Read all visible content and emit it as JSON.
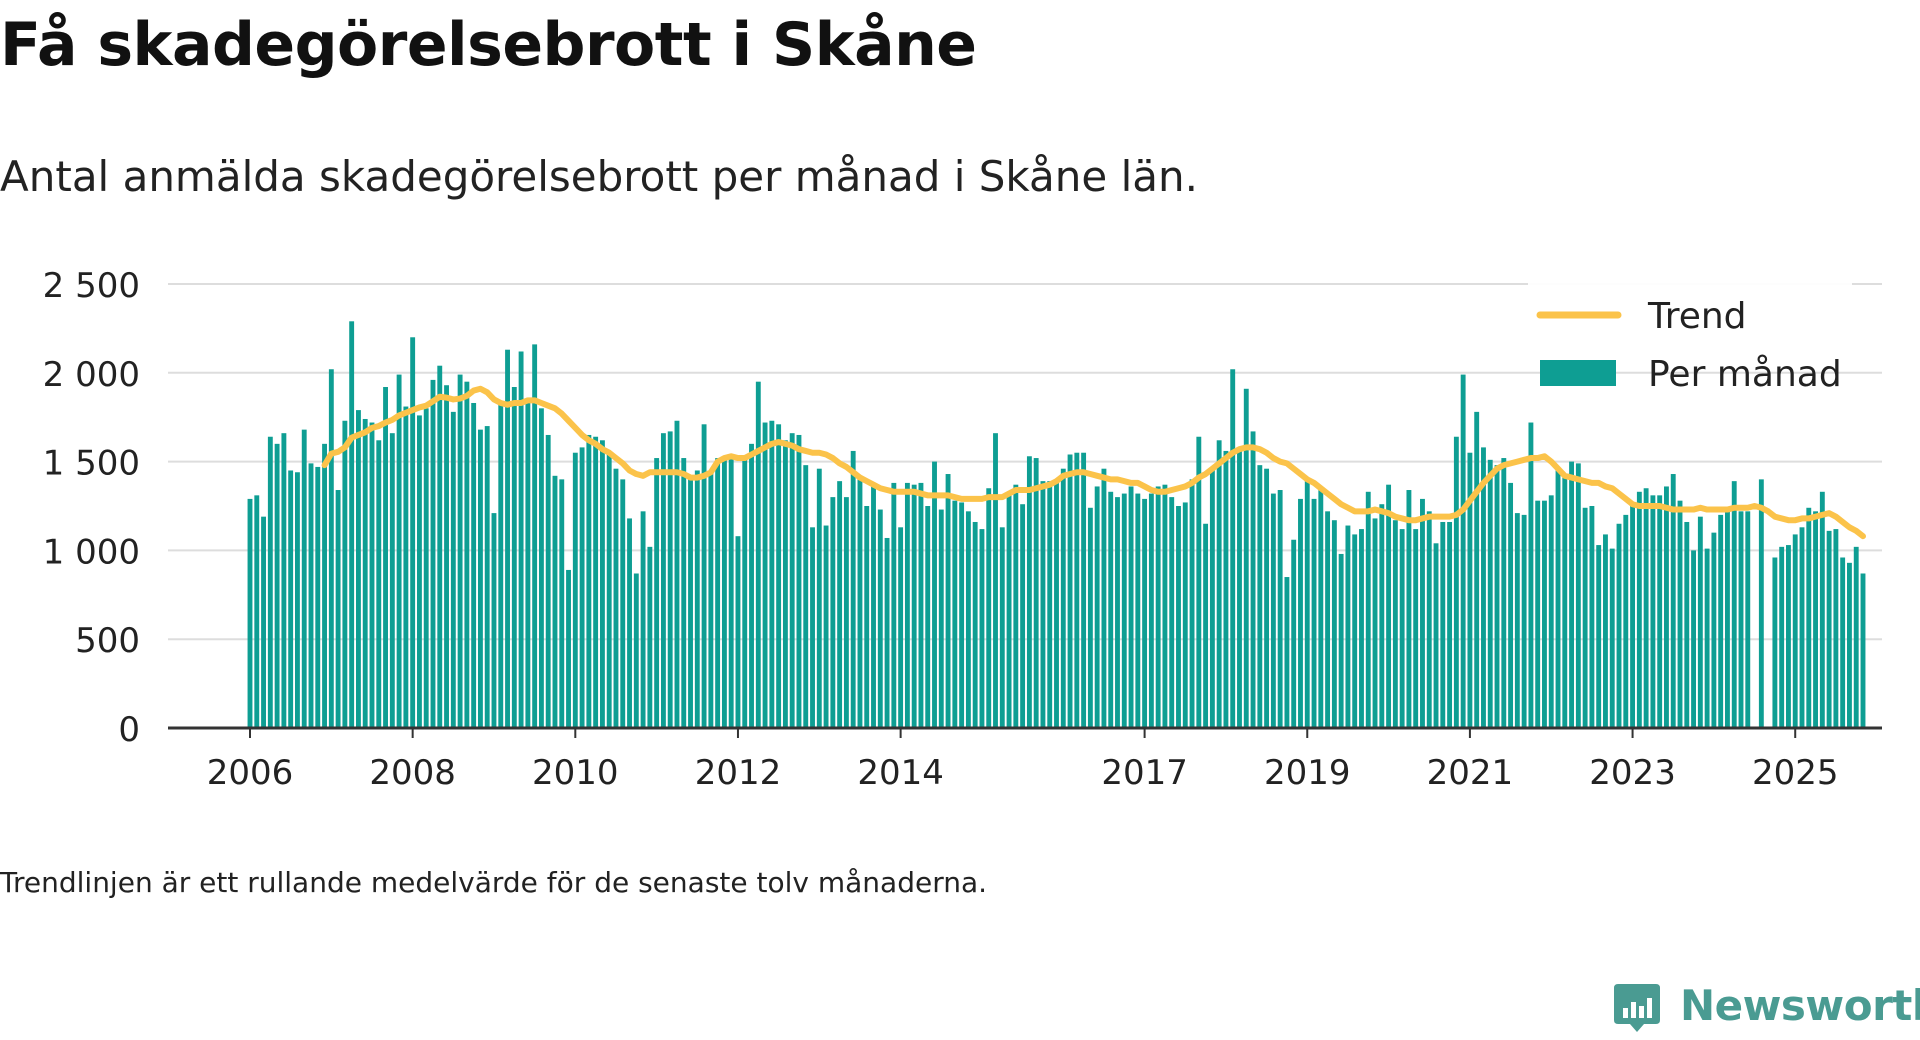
{
  "header": {
    "title": "Få skadegörelsebrott i Skåne",
    "subtitle": "Antal anmälda skadegörelsebrott per månad i Skåne län."
  },
  "footer": {
    "note": "Trendlinjen är ett rullande medelvärde för de senaste tolv månaderna.",
    "brand": "Newsworthy"
  },
  "colors": {
    "bar": "#0e9e93",
    "trend": "#fbc34a",
    "grid": "#dddddd",
    "axis": "#333333",
    "brand": "#4a9b92"
  },
  "chart_data": {
    "type": "bar",
    "title": "Få skadegörelsebrott i Skåne",
    "subtitle": "Antal anmälda skadegörelsebrott per månad i Skåne län.",
    "xlabel": "",
    "ylabel": "",
    "ylim": [
      0,
      2500
    ],
    "y_ticks": [
      0,
      500,
      1000,
      1500,
      2000,
      2500
    ],
    "y_tick_labels": [
      "0",
      "500",
      "1 000",
      "1 500",
      "2 000",
      "2 500"
    ],
    "x_tick_labels": [
      "2006",
      "2008",
      "2010",
      "2012",
      "2014",
      "2017",
      "2019",
      "2021",
      "2023",
      "2025"
    ],
    "grid": "horizontal",
    "legend_position": "top-right",
    "start": "2006-01",
    "end": "2025-02",
    "series": [
      {
        "name": "Per månad",
        "kind": "bar",
        "values": [
          1290,
          1310,
          1190,
          1640,
          1600,
          1660,
          1450,
          1440,
          1680,
          1490,
          1470,
          1600,
          2020,
          1340,
          1730,
          2290,
          1790,
          1740,
          1720,
          1620,
          1920,
          1660,
          1990,
          1810,
          2200,
          1760,
          1800,
          1960,
          2040,
          1930,
          1780,
          1990,
          1950,
          1830,
          1680,
          1700,
          1210,
          1820,
          2130,
          1920,
          2120,
          1830,
          2160,
          1800,
          1650,
          1420,
          1400,
          890,
          1550,
          1580,
          1650,
          1640,
          1620,
          1540,
          1460,
          1400,
          1180,
          870,
          1220,
          1020,
          1520,
          1660,
          1670,
          1730,
          1520,
          1420,
          1450,
          1710,
          1440,
          1520,
          1510,
          1520,
          1080,
          1520,
          1600,
          1950,
          1720,
          1730,
          1710,
          1620,
          1660,
          1650,
          1480,
          1130,
          1460,
          1140,
          1300,
          1390,
          1300,
          1560,
          1400,
          1250,
          1370,
          1230,
          1070,
          1380,
          1130,
          1380,
          1370,
          1380,
          1250,
          1500,
          1230,
          1430,
          1280,
          1270,
          1220,
          1160,
          1120,
          1350,
          1660,
          1130,
          1320,
          1370,
          1260,
          1530,
          1520,
          1390,
          1390,
          1400,
          1460,
          1540,
          1550,
          1550,
          1240,
          1360,
          1460,
          1330,
          1300,
          1320,
          1360,
          1320,
          1290,
          1320,
          1360,
          1370,
          1300,
          1250,
          1270,
          1400,
          1640,
          1150,
          1470,
          1620,
          1560,
          2020,
          1560,
          1910,
          1670,
          1480,
          1460,
          1320,
          1340,
          850,
          1060,
          1290,
          1400,
          1290,
          1340,
          1220,
          1170,
          980,
          1140,
          1090,
          1120,
          1330,
          1180,
          1260,
          1370,
          1170,
          1120,
          1340,
          1120,
          1290,
          1220,
          1040,
          1160,
          1160,
          1640,
          1990,
          1550,
          1780,
          1580,
          1510,
          1480,
          1520,
          1380,
          1210,
          1200,
          1720,
          1280,
          1280,
          1310,
          1460,
          1410,
          1500,
          1490,
          1240,
          1250,
          1030,
          1090,
          1010,
          1150,
          1200,
          1250,
          1330,
          1350,
          1310,
          1310,
          1360,
          1430,
          1280,
          1160,
          1000,
          1190,
          1010,
          1100,
          1200,
          1220,
          1390,
          1220,
          1220,
          0,
          1400,
          0,
          960,
          1020,
          1030,
          1090,
          1130,
          1240,
          1220,
          1330,
          1110,
          1120,
          960,
          930,
          1020,
          870
        ]
      },
      {
        "name": "Trend",
        "kind": "line",
        "values": [
          null,
          null,
          null,
          null,
          null,
          null,
          null,
          null,
          null,
          null,
          null,
          1480,
          1545,
          1555,
          1580,
          1635,
          1650,
          1665,
          1690,
          1700,
          1720,
          1735,
          1760,
          1775,
          1790,
          1805,
          1815,
          1840,
          1865,
          1860,
          1850,
          1855,
          1870,
          1900,
          1910,
          1890,
          1850,
          1830,
          1820,
          1830,
          1830,
          1845,
          1845,
          1830,
          1815,
          1800,
          1770,
          1730,
          1690,
          1650,
          1620,
          1600,
          1570,
          1550,
          1520,
          1490,
          1450,
          1430,
          1420,
          1440,
          1440,
          1440,
          1440,
          1440,
          1430,
          1410,
          1410,
          1420,
          1440,
          1500,
          1520,
          1530,
          1520,
          1520,
          1540,
          1560,
          1580,
          1600,
          1610,
          1600,
          1590,
          1570,
          1560,
          1550,
          1550,
          1540,
          1520,
          1490,
          1470,
          1440,
          1410,
          1390,
          1370,
          1350,
          1340,
          1330,
          1330,
          1330,
          1330,
          1320,
          1310,
          1310,
          1310,
          1310,
          1300,
          1290,
          1290,
          1290,
          1290,
          1300,
          1300,
          1300,
          1320,
          1340,
          1340,
          1340,
          1350,
          1360,
          1370,
          1390,
          1420,
          1430,
          1440,
          1440,
          1430,
          1420,
          1410,
          1400,
          1400,
          1390,
          1380,
          1380,
          1360,
          1340,
          1330,
          1330,
          1340,
          1350,
          1360,
          1380,
          1410,
          1430,
          1460,
          1490,
          1520,
          1550,
          1570,
          1580,
          1580,
          1570,
          1550,
          1520,
          1500,
          1490,
          1460,
          1430,
          1400,
          1380,
          1350,
          1320,
          1290,
          1260,
          1240,
          1220,
          1220,
          1220,
          1230,
          1220,
          1210,
          1190,
          1180,
          1170,
          1170,
          1180,
          1190,
          1190,
          1190,
          1190,
          1200,
          1230,
          1280,
          1330,
          1380,
          1420,
          1460,
          1480,
          1490,
          1500,
          1510,
          1520,
          1520,
          1530,
          1500,
          1460,
          1420,
          1410,
          1400,
          1390,
          1380,
          1380,
          1360,
          1350,
          1320,
          1290,
          1260,
          1250,
          1250,
          1250,
          1250,
          1240,
          1230,
          1230,
          1230,
          1230,
          1240,
          1230,
          1230,
          1230,
          1230,
          1240,
          1240,
          1240,
          1250,
          1240,
          1220,
          1190,
          1180,
          1170,
          1170,
          1180,
          1180,
          1190,
          1200,
          1210,
          1190,
          1160,
          1130,
          1110,
          1080
        ]
      }
    ]
  }
}
